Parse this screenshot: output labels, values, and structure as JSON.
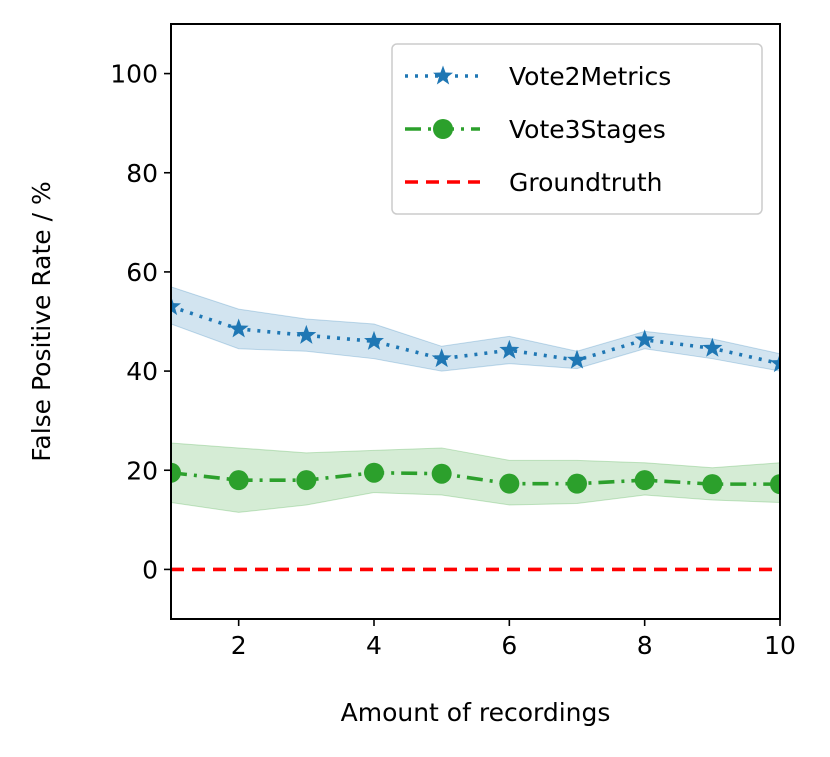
{
  "chart_data": {
    "type": "line",
    "title": "",
    "xlabel": "Amount of recordings",
    "ylabel": "False Positive Rate / %",
    "xlim": [
      1,
      10
    ],
    "ylim": [
      -10,
      110
    ],
    "xticks": [
      2,
      4,
      6,
      8,
      10
    ],
    "yticks": [
      0,
      20,
      40,
      60,
      80,
      100
    ],
    "grid": false,
    "legend_position": "top-right",
    "x": [
      1,
      2,
      3,
      4,
      5,
      6,
      7,
      8,
      9,
      10
    ],
    "series": [
      {
        "name": "Vote2Metrics",
        "color": "#1f77b4",
        "linestyle": "dotted",
        "marker": "star",
        "values": [
          53,
          48.5,
          47.2,
          46,
          42.5,
          44.2,
          42.2,
          46.3,
          44.6,
          41.5
        ],
        "band_lower": [
          49.5,
          44.5,
          44,
          42.5,
          40,
          41.5,
          40.5,
          44.5,
          42.5,
          40
        ],
        "band_upper": [
          57,
          52.5,
          50.5,
          49.5,
          45,
          47,
          44,
          48,
          46.5,
          43.5
        ]
      },
      {
        "name": "Vote3Stages",
        "color": "#2ca02c",
        "linestyle": "dashdot",
        "marker": "circle",
        "values": [
          19.5,
          18,
          18,
          19.5,
          19.3,
          17.3,
          17.3,
          18,
          17.2,
          17.2
        ],
        "band_lower": [
          13.5,
          11.5,
          13,
          15.5,
          15,
          13,
          13.3,
          15,
          14,
          13.5
        ],
        "band_upper": [
          25.5,
          24.5,
          23.5,
          24,
          24.5,
          22,
          22,
          21.5,
          20.5,
          21.5
        ]
      },
      {
        "name": "Groundtruth",
        "color": "#ff0000",
        "linestyle": "dashed",
        "marker": "none",
        "values": [
          0,
          0,
          0,
          0,
          0,
          0,
          0,
          0,
          0,
          0
        ]
      }
    ]
  }
}
